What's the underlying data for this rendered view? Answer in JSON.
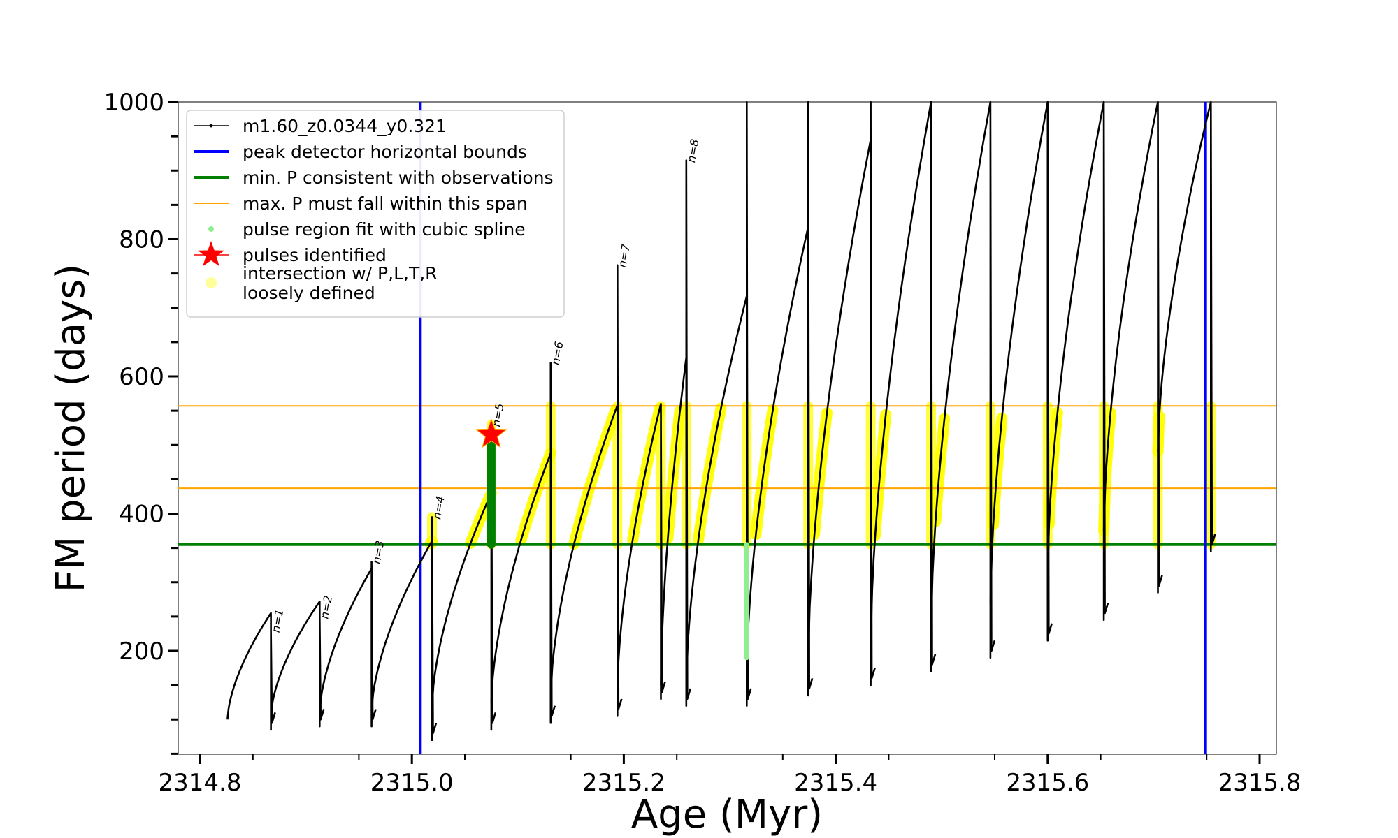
{
  "chart_data": {
    "type": "line",
    "xlabel": "Age (Myr)",
    "ylabel": "FM period (days)",
    "xlim": [
      2314.78,
      2315.81
    ],
    "ylim": [
      50,
      1000
    ],
    "x_ticks": [
      "2314.8",
      "2315.0",
      "2315.2",
      "2315.4",
      "2315.6",
      "2315.8"
    ],
    "x_tick_values": [
      2314.8,
      2315.0,
      2315.2,
      2315.4,
      2315.6,
      2315.8
    ],
    "y_ticks": [
      "200",
      "400",
      "600",
      "800",
      "1000"
    ],
    "y_tick_values": [
      200,
      400,
      600,
      800,
      1000
    ],
    "legend": {
      "placement": "upper-left",
      "entries": [
        {
          "label": "m1.60_z0.0344_y0.321",
          "kind": "line-dots",
          "color": "#000000"
        },
        {
          "label": "peak detector horizontal bounds",
          "kind": "line",
          "color": "#0000ff"
        },
        {
          "label": "min. P consistent with observations",
          "kind": "line",
          "color": "#008000"
        },
        {
          "label": "max. P must fall within this span",
          "kind": "line",
          "color": "#ffa500"
        },
        {
          "label": "pulse region fit with cubic spline",
          "kind": "dot",
          "color": "#90ee90"
        },
        {
          "label": "pulses identified",
          "kind": "star",
          "color": "#ff0000"
        },
        {
          "label": "intersection w/ P,L,T,R\nloosely defined",
          "kind": "dot",
          "color": "#ffff99"
        }
      ]
    },
    "vertical_bounds": {
      "color": "#0000ff",
      "x": [
        2315.008,
        2315.749
      ]
    },
    "min_period": {
      "color": "#008000",
      "y": 355
    },
    "max_period_span": {
      "color": "#ffa500",
      "y": [
        437,
        557
      ]
    },
    "pulses": [
      {
        "label": "n=1",
        "x_start": 2314.826,
        "x_end": 2314.867,
        "y_start": 100,
        "y_peak": 255,
        "y_min": 85,
        "y_spike": 230
      },
      {
        "label": "n=2",
        "x_start": 2314.867,
        "x_end": 2314.913,
        "y_start": 105,
        "y_peak": 272,
        "y_min": 90,
        "y_spike": 250
      },
      {
        "label": "n=3",
        "x_start": 2314.913,
        "x_end": 2314.962,
        "y_start": 110,
        "y_peak": 320,
        "y_min": 90,
        "y_spike": 330
      },
      {
        "label": "n=4",
        "x_start": 2314.962,
        "x_end": 2315.019,
        "y_start": 112,
        "y_peak": 360,
        "y_min": 70,
        "y_spike": 395
      },
      {
        "label": "n=5",
        "x_start": 2315.019,
        "x_end": 2315.075,
        "y_start": 118,
        "y_peak": 430,
        "y_min": 85,
        "y_spike": 530
      },
      {
        "label": "n=6",
        "x_start": 2315.075,
        "x_end": 2315.131,
        "y_start": 125,
        "y_peak": 488,
        "y_min": 95,
        "y_spike": 620
      },
      {
        "label": "n=7",
        "x_start": 2315.131,
        "x_end": 2315.194,
        "y_start": 135,
        "y_peak": 558,
        "y_min": 105,
        "y_spike": 762
      },
      {
        "label": "",
        "x_start": 2315.194,
        "x_end": 2315.235,
        "y_start": 145,
        "y_peak": 560,
        "y_min": 130,
        "y_spike": 560
      },
      {
        "label": "n=8",
        "x_start": 2315.235,
        "x_end": 2315.259,
        "y_start": 150,
        "y_peak": 628,
        "y_min": 120,
        "y_spike": 915
      },
      {
        "label": "",
        "x_start": 2315.259,
        "x_end": 2315.316,
        "y_start": 155,
        "y_peak": 717,
        "y_min": 120,
        "y_spike": 1000
      },
      {
        "label": "",
        "x_start": 2315.316,
        "x_end": 2315.374,
        "y_start": 170,
        "y_peak": 818,
        "y_min": 135,
        "y_spike": 1000
      },
      {
        "label": "",
        "x_start": 2315.374,
        "x_end": 2315.433,
        "y_start": 188,
        "y_peak": 945,
        "y_min": 150,
        "y_spike": 1000
      },
      {
        "label": "",
        "x_start": 2315.433,
        "x_end": 2315.49,
        "y_start": 210,
        "y_peak": 1000,
        "y_min": 170,
        "y_spike": 1000
      },
      {
        "label": "",
        "x_start": 2315.49,
        "x_end": 2315.546,
        "y_start": 235,
        "y_peak": 1000,
        "y_min": 190,
        "y_spike": 1000
      },
      {
        "label": "",
        "x_start": 2315.546,
        "x_end": 2315.6,
        "y_start": 270,
        "y_peak": 1000,
        "y_min": 215,
        "y_spike": 1000
      },
      {
        "label": "",
        "x_start": 2315.6,
        "x_end": 2315.653,
        "y_start": 315,
        "y_peak": 1000,
        "y_min": 245,
        "y_spike": 1000
      },
      {
        "label": "",
        "x_start": 2315.653,
        "x_end": 2315.704,
        "y_start": 375,
        "y_peak": 1000,
        "y_min": 285,
        "y_spike": 1000
      },
      {
        "label": "",
        "x_start": 2315.704,
        "x_end": 2315.754,
        "y_start": 490,
        "y_peak": 1000,
        "y_min": 345,
        "y_spike": 1000
      }
    ],
    "identified_pulse": {
      "x": 2315.075,
      "y": 515,
      "color": "#ff0000"
    },
    "green_segment": {
      "x": 2315.075,
      "y": [
        355,
        510
      ],
      "color": "#008000"
    },
    "light_green_segment": {
      "x": 2315.316,
      "y": [
        190,
        355
      ],
      "color": "#90ee90"
    },
    "yellow_color": "#ffff00",
    "grid": false
  }
}
